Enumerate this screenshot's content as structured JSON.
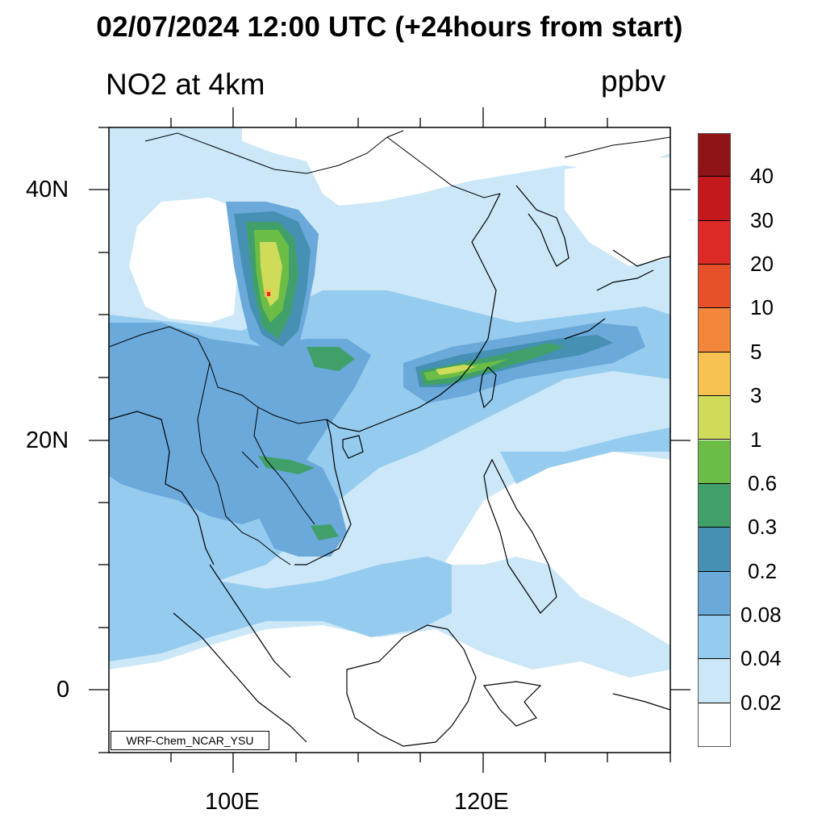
{
  "title": "02/07/2024 12:00 UTC (+24hours from start)",
  "subtitle_left": "NO2 at 4km",
  "subtitle_right": "ppbv",
  "credit": "WRF-Chem_NCAR_YSU",
  "axes": {
    "y_ticks": [
      {
        "label": "40N"
      },
      {
        "label": "20N"
      },
      {
        "label": "0"
      }
    ],
    "x_ticks": [
      {
        "label": "100E"
      },
      {
        "label": "120E"
      }
    ]
  },
  "legend": {
    "levels": [
      "40",
      "30",
      "20",
      "10",
      "5",
      "3",
      "1",
      "0.6",
      "0.3",
      "0.2",
      "0.08",
      "0.04",
      "0.02"
    ],
    "colors": [
      "#8f1418",
      "#c4181c",
      "#dd2a26",
      "#e8502a",
      "#f2863a",
      "#f7c252",
      "#cfdc5a",
      "#6cbd45",
      "#41a06a",
      "#4590b3",
      "#6aa9da",
      "#95cbee",
      "#cbe7f8",
      "#ffffff"
    ]
  },
  "field_colors": {
    "bg_white": "#ffffff",
    "very_light": "#cbe7f8",
    "light": "#95cbee",
    "medium": "#6aa9da",
    "teal": "#4590b3",
    "green": "#41a06a",
    "lightgreen": "#6cbd45",
    "yellowgreen": "#cfdc5a",
    "yellow": "#f7c252",
    "red": "#dd2a26"
  }
}
